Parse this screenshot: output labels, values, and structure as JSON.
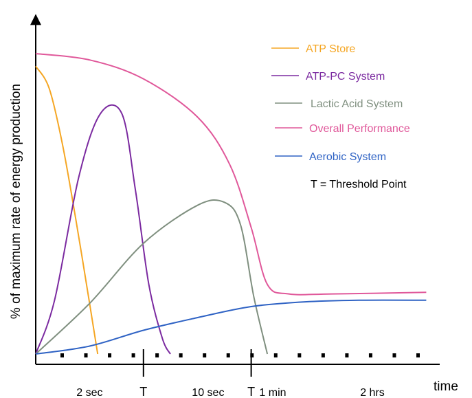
{
  "chart_data": {
    "type": "line",
    "ylabel": "% of maximum rate of energy production",
    "xlabel": "time",
    "x_ticks": [
      {
        "label": "2 sec",
        "x": 2.0,
        "color": "#000000"
      },
      {
        "label": "T",
        "x": 4.0,
        "color": "#000000"
      },
      {
        "label": "10 sec",
        "x": 6.4,
        "color": "#8b1a1a"
      },
      {
        "label": "T",
        "x": 8.0,
        "color": "#000000"
      },
      {
        "label": "1 min",
        "x": 8.8,
        "color": "#000000"
      },
      {
        "label": "2 hrs",
        "x": 12.5,
        "color": "#000000"
      }
    ],
    "xlim": [
      0,
      15
    ],
    "ylim": [
      0,
      100
    ],
    "series": [
      {
        "name": "ATP Store",
        "color": "#f5a623",
        "points": [
          [
            0,
            91
          ],
          [
            0.5,
            84
          ],
          [
            1.0,
            66
          ],
          [
            1.5,
            42
          ],
          [
            2.0,
            16
          ],
          [
            2.3,
            0
          ]
        ]
      },
      {
        "name": "ATP-PC System",
        "color": "#7b2aa0",
        "points": [
          [
            0,
            0
          ],
          [
            0.7,
            17
          ],
          [
            1.6,
            56
          ],
          [
            2.4,
            76
          ],
          [
            3.2,
            76
          ],
          [
            3.7,
            52
          ],
          [
            4.2,
            22
          ],
          [
            4.7,
            5
          ],
          [
            5.0,
            0
          ]
        ]
      },
      {
        "name": "Lactic Acid System",
        "color": "#7f8f7f",
        "points": [
          [
            0,
            0
          ],
          [
            2,
            16
          ],
          [
            4,
            35
          ],
          [
            6,
            47
          ],
          [
            7.0,
            48
          ],
          [
            7.6,
            41
          ],
          [
            8.1,
            18
          ],
          [
            8.6,
            0
          ]
        ]
      },
      {
        "name": "Overall Performance",
        "color": "#e0589a",
        "points": [
          [
            0,
            95
          ],
          [
            2,
            93
          ],
          [
            4,
            87
          ],
          [
            6,
            75
          ],
          [
            7.2,
            60
          ],
          [
            8.0,
            40
          ],
          [
            8.6,
            22
          ],
          [
            9.4,
            19
          ],
          [
            11,
            19
          ],
          [
            14.5,
            19.5
          ]
        ]
      },
      {
        "name": "Aerobic System",
        "color": "#2e62c4",
        "points": [
          [
            0,
            0
          ],
          [
            2,
            2.5
          ],
          [
            4,
            7.5
          ],
          [
            6,
            11.5
          ],
          [
            8,
            15
          ],
          [
            10,
            16.5
          ],
          [
            12,
            17
          ],
          [
            14.5,
            17
          ]
        ]
      }
    ],
    "threshold_markers": [
      4.0,
      8.0
    ],
    "tick_marks_count": 16,
    "legend": {
      "placement": "top-right",
      "items": [
        {
          "label": "ATP Store",
          "color": "#f5a623"
        },
        {
          "label": "ATP-PC System",
          "color": "#7b2aa0"
        },
        {
          "label": "Lactic Acid System",
          "color": "#7f8f7f"
        },
        {
          "label": "Overall Performance",
          "color": "#e0589a"
        },
        {
          "label": "Aerobic System",
          "color": "#2e62c4"
        }
      ],
      "note": "T = Threshold Point"
    }
  }
}
